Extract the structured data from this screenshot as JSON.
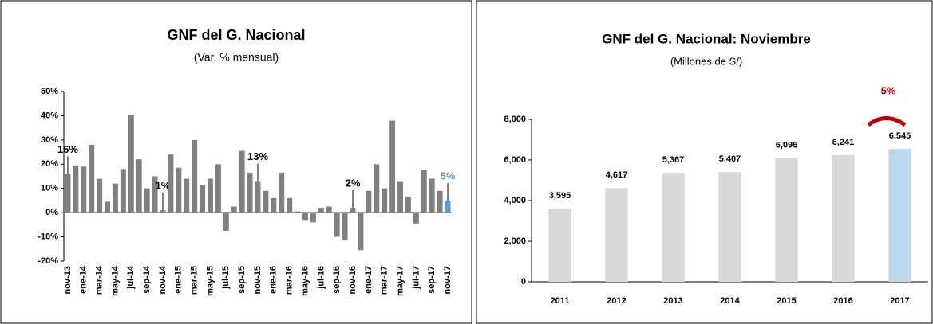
{
  "chart_data": [
    {
      "type": "bar",
      "title": "GNF del G. Nacional",
      "subtitle": "(Var. % mensual)",
      "categories": [
        "nov-13",
        null,
        "ene-14",
        null,
        "mar-14",
        null,
        "may-14",
        null,
        "jul-14",
        null,
        "sep-14",
        null,
        "nov-14",
        null,
        "ene-15",
        null,
        "mar-15",
        null,
        "may-15",
        null,
        "jul-15",
        null,
        "sep-15",
        null,
        "nov-15",
        null,
        "ene-16",
        null,
        "mar-16",
        null,
        "may-16",
        null,
        "jul-16",
        null,
        "sep-16",
        null,
        "nov-16",
        null,
        "ene-17",
        null,
        "mar-17",
        null,
        "may-17",
        null,
        "jul-17",
        null,
        "sep-17",
        null,
        "nov-17"
      ],
      "values": [
        16,
        19.5,
        19,
        28,
        14,
        4.5,
        12,
        18,
        40.5,
        22,
        10,
        15,
        1,
        24,
        18.5,
        14,
        30,
        11.5,
        14,
        20,
        -7.5,
        2.5,
        25.5,
        16.5,
        13,
        9,
        6,
        16.5,
        6,
        0.5,
        -3,
        -4,
        2,
        2.5,
        -10,
        -11.5,
        2,
        -15.5,
        9,
        20,
        10,
        38,
        13,
        6.5,
        -4.5,
        17.5,
        14,
        9,
        5
      ],
      "value_labels": [
        "16%",
        null,
        null,
        null,
        null,
        null,
        null,
        null,
        null,
        null,
        null,
        null,
        "1%",
        null,
        null,
        null,
        null,
        null,
        null,
        null,
        null,
        null,
        null,
        null,
        "13%",
        null,
        null,
        null,
        null,
        null,
        null,
        null,
        null,
        null,
        null,
        null,
        "2%",
        null,
        null,
        null,
        null,
        null,
        null,
        null,
        null,
        null,
        null,
        null,
        "5%"
      ],
      "colors": [
        "#808080",
        "#808080",
        "#808080",
        "#808080",
        "#808080",
        "#808080",
        "#808080",
        "#808080",
        "#808080",
        "#808080",
        "#808080",
        "#808080",
        "#808080",
        "#808080",
        "#808080",
        "#808080",
        "#808080",
        "#808080",
        "#808080",
        "#808080",
        "#808080",
        "#808080",
        "#808080",
        "#808080",
        "#808080",
        "#808080",
        "#808080",
        "#808080",
        "#808080",
        "#808080",
        "#808080",
        "#808080",
        "#808080",
        "#808080",
        "#808080",
        "#808080",
        "#808080",
        "#808080",
        "#808080",
        "#808080",
        "#808080",
        "#808080",
        "#808080",
        "#808080",
        "#808080",
        "#808080",
        "#808080",
        "#808080",
        "#5b9bd5"
      ],
      "ylim": [
        -20,
        50
      ],
      "yticks": [
        {
          "value": -20,
          "label": "-20%"
        },
        {
          "value": -10,
          "label": "-10%"
        },
        {
          "value": 0,
          "label": "0%"
        },
        {
          "value": 10,
          "label": "10%"
        },
        {
          "value": 20,
          "label": "20%"
        },
        {
          "value": 30,
          "label": "30%"
        },
        {
          "value": 40,
          "label": "40%"
        },
        {
          "value": 50,
          "label": "50%"
        }
      ],
      "grid": false
    },
    {
      "type": "bar",
      "title": "GNF del G. Nacional: Noviembre",
      "subtitle": "(Millones de S/)",
      "categories": [
        "2011",
        "2012",
        "2013",
        "2014",
        "2015",
        "2016",
        "2017"
      ],
      "values": [
        3595,
        4617,
        5367,
        5407,
        6096,
        6241,
        6545
      ],
      "value_labels": [
        "3,595",
        "4,617",
        "5,367",
        "5,407",
        "6,096",
        "6,241",
        "6,545"
      ],
      "colors": [
        "#d9d9d9",
        "#d9d9d9",
        "#d9d9d9",
        "#d9d9d9",
        "#d9d9d9",
        "#d9d9d9",
        "#bdd7ee"
      ],
      "annotation": "5%",
      "ylim": [
        0,
        8000
      ],
      "yticks": [
        0,
        {
          "value": 2000,
          "label": "2,000"
        },
        {
          "value": 4000,
          "label": "4,000"
        },
        {
          "value": 6000,
          "label": "6,000"
        },
        {
          "value": 8000,
          "label": "8,000"
        }
      ],
      "grid": false
    }
  ]
}
